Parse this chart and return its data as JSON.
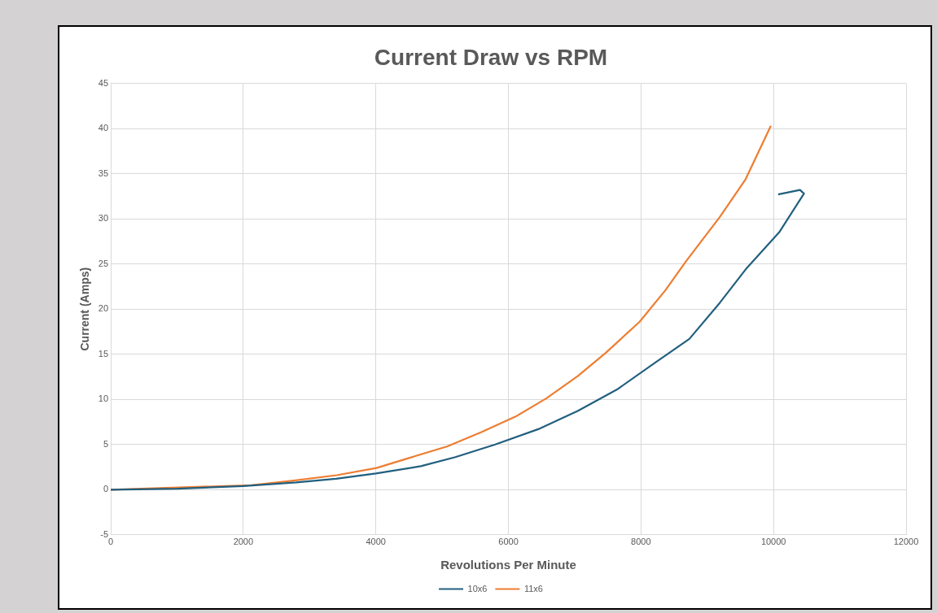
{
  "chart_data": {
    "type": "line",
    "title": "Current Draw vs RPM",
    "xlabel": "Revolutions Per Minute",
    "ylabel": "Current (Amps)",
    "xlim": [
      0,
      12000
    ],
    "xticks": [
      0,
      2000,
      4000,
      6000,
      8000,
      10000,
      12000
    ],
    "ylim": [
      -5,
      45
    ],
    "yticks": [
      -5,
      0,
      5,
      10,
      15,
      20,
      25,
      30,
      35,
      40,
      45
    ],
    "grid": true,
    "legend": "bottom",
    "marker": "none",
    "line_style": "solid",
    "series": [
      {
        "name": "10x6",
        "color": "#215f7f",
        "x": [
          0,
          1000,
          2000,
          2800,
          3400,
          4000,
          4680,
          5200,
          5800,
          6450,
          7040,
          7640,
          8200,
          8730,
          9190,
          9580,
          10085,
          10460,
          10400,
          10070
        ],
        "values": [
          0,
          0.1,
          0.4,
          0.8,
          1.2,
          1.8,
          2.6,
          3.6,
          5,
          6.7,
          8.7,
          11.1,
          14,
          16.7,
          20.7,
          24.4,
          28.5,
          32.8,
          33.2,
          32.7
        ]
      },
      {
        "name": "11x6",
        "color": "#ed7d31",
        "x": [
          0,
          2120,
          2760,
          3410,
          4010,
          4500,
          5080,
          5600,
          6110,
          6570,
          7050,
          7460,
          7980,
          8370,
          8680,
          9190,
          9580,
          9960
        ],
        "values": [
          0,
          0.5,
          1,
          1.6,
          2.4,
          3.5,
          4.8,
          6.4,
          8.1,
          10.1,
          12.6,
          15.1,
          18.6,
          22.1,
          25.3,
          30.2,
          34.4,
          40.3
        ]
      }
    ]
  }
}
